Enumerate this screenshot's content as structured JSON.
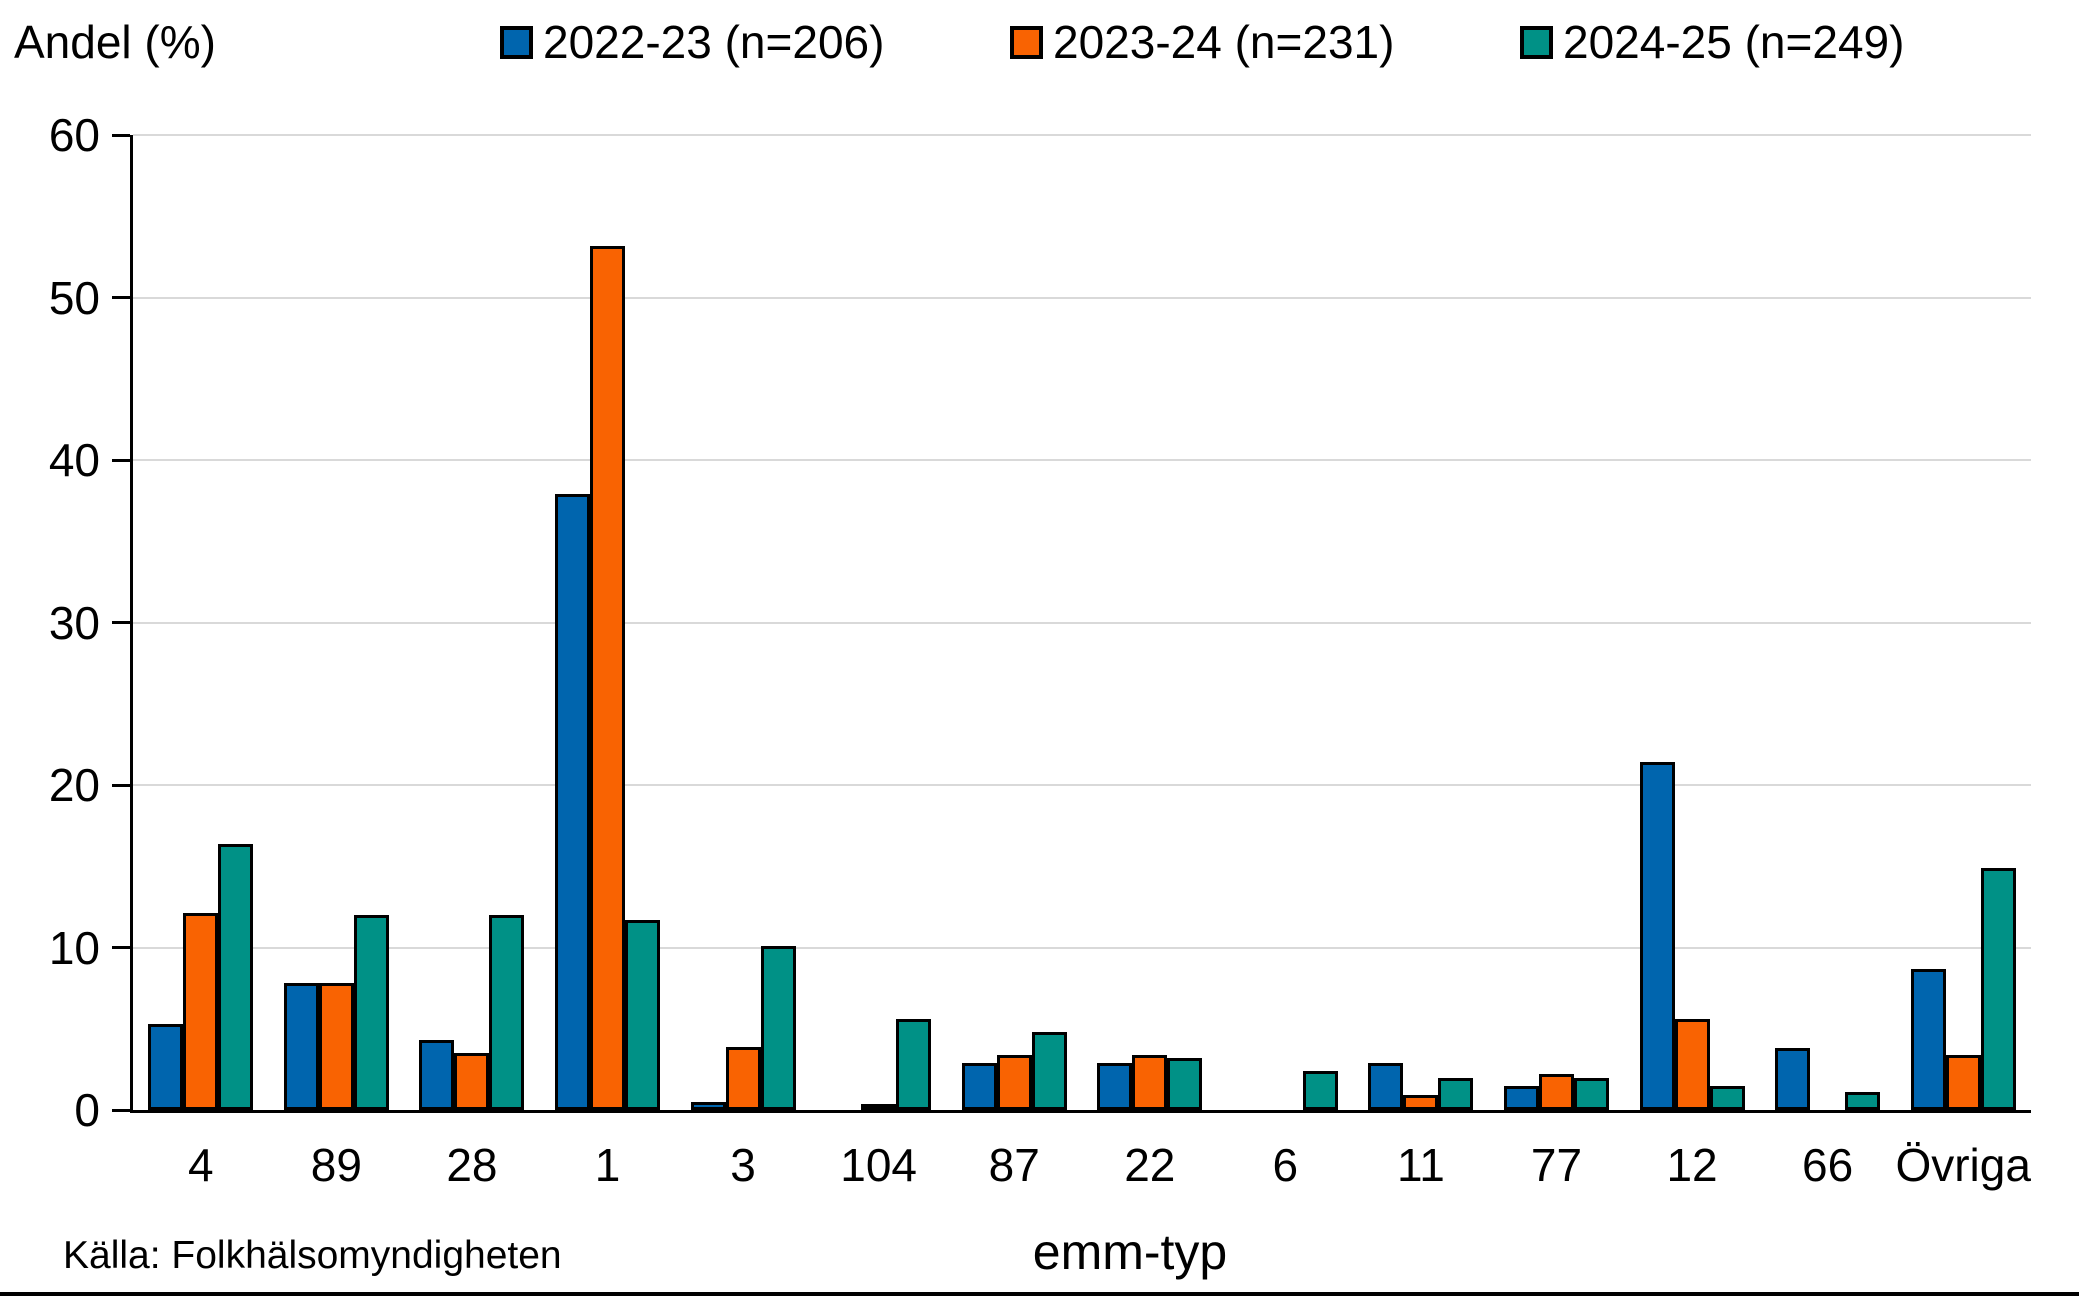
{
  "chart_data": {
    "type": "bar",
    "title": "",
    "ylabel": "Andel (%)",
    "xlabel": "emm-typ",
    "source": "Källa: Folkhälsomyndigheten",
    "ylim": [
      0,
      60
    ],
    "yticks": [
      0,
      10,
      20,
      30,
      40,
      50,
      60
    ],
    "grid": true,
    "legend_position": "top",
    "categories": [
      "4",
      "89",
      "28",
      "1",
      "3",
      "104",
      "87",
      "22",
      "6",
      "11",
      "77",
      "12",
      "66",
      "Övriga"
    ],
    "series": [
      {
        "name": "2022-23 (n=206)",
        "color": "#0065AE",
        "values": [
          5.3,
          7.8,
          4.3,
          37.9,
          0.5,
          0,
          2.9,
          2.9,
          0,
          2.9,
          1.5,
          21.4,
          3.8,
          8.7
        ]
      },
      {
        "name": "2023-24 (n=231)",
        "color": "#F96302",
        "values": [
          12.1,
          7.8,
          3.5,
          53.2,
          3.9,
          0.4,
          3.4,
          3.4,
          0,
          0.9,
          2.2,
          5.6,
          0,
          3.4
        ]
      },
      {
        "name": "2024-25 (n=249)",
        "color": "#009186",
        "values": [
          16.4,
          12.0,
          12.0,
          11.7,
          10.1,
          5.6,
          4.8,
          3.2,
          2.4,
          2.0,
          2.0,
          1.5,
          1.1,
          14.9
        ]
      }
    ],
    "colors": {
      "gridline": "#D9D9D9",
      "axis": "#000000",
      "background": "#FFFFFF"
    }
  }
}
